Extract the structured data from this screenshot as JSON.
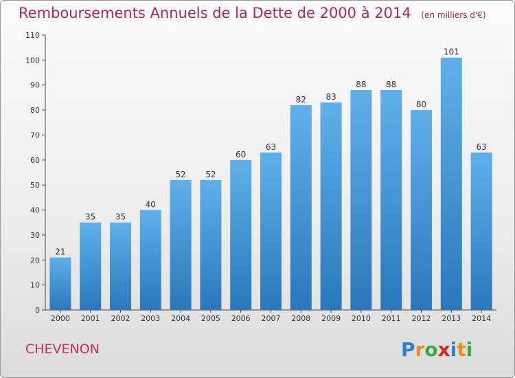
{
  "header": {
    "title": "Remboursements Annuels de la Dette de 2000 à 2014",
    "unit": "(en milliers d'€)"
  },
  "footer": {
    "place": "CHEVENON",
    "logo_text": "Proxiti"
  },
  "colors": {
    "title": "#b2245f",
    "bar_top": "#5fb0ea",
    "bar_bottom": "#2a78bc",
    "place": "#c0305d"
  },
  "chart_data": {
    "type": "bar",
    "title": "Remboursements Annuels de la Dette de 2000 à 2014",
    "xlabel": "",
    "ylabel": "",
    "categories": [
      "2000",
      "2001",
      "2002",
      "2003",
      "2004",
      "2005",
      "2006",
      "2007",
      "2008",
      "2009",
      "2010",
      "2011",
      "2012",
      "2013",
      "2014"
    ],
    "values": [
      21,
      35,
      35,
      40,
      52,
      52,
      60,
      63,
      82,
      83,
      88,
      88,
      80,
      101,
      63
    ],
    "ylim": [
      0,
      110
    ],
    "yticks": [
      0,
      10,
      20,
      30,
      40,
      50,
      60,
      70,
      80,
      90,
      100,
      110
    ],
    "grid": false,
    "legend": "none"
  }
}
